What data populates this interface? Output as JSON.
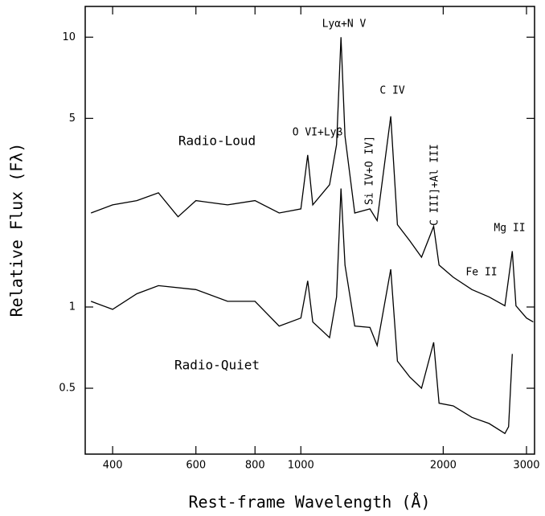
{
  "chart_data": {
    "type": "line",
    "x_label": "Rest-frame Wavelength (Å)",
    "y_label": "Relative Flux (Fλ)",
    "xlog": true,
    "ylog": true,
    "xlim": [
      350,
      3120
    ],
    "ylim": [
      0.285,
      13
    ],
    "xticks": [
      400,
      600,
      800,
      1000,
      2000,
      3000
    ],
    "yticks": [
      0.5,
      1,
      5,
      10
    ],
    "series": [
      {
        "name": "Radio-Loud",
        "color": "#000000",
        "x": [
          360,
          400,
          450,
          500,
          550,
          600,
          700,
          800,
          900,
          1000,
          1034,
          1060,
          1150,
          1190,
          1216,
          1240,
          1300,
          1400,
          1450,
          1549,
          1600,
          1700,
          1800,
          1909,
          1960,
          2100,
          2300,
          2500,
          2700,
          2800,
          2850,
          3000,
          3100
        ],
        "values": [
          2.23,
          2.39,
          2.48,
          2.65,
          2.16,
          2.48,
          2.39,
          2.48,
          2.23,
          2.31,
          3.66,
          2.39,
          2.84,
          4.0,
          10,
          4.29,
          2.23,
          2.31,
          2.09,
          5.09,
          2.02,
          1.76,
          1.53,
          1.99,
          1.43,
          1.29,
          1.16,
          1.09,
          1.01,
          1.61,
          1.01,
          0.91,
          0.88
        ]
      },
      {
        "name": "Radio-Quiet",
        "color": "#000000",
        "x": [
          360,
          400,
          450,
          500,
          600,
          700,
          800,
          900,
          1000,
          1034,
          1060,
          1150,
          1190,
          1216,
          1240,
          1300,
          1400,
          1450,
          1549,
          1600,
          1700,
          1800,
          1909,
          1960,
          2100,
          2300,
          2500,
          2700,
          2750,
          2800
        ],
        "values": [
          1.05,
          0.98,
          1.12,
          1.2,
          1.16,
          1.05,
          1.05,
          0.85,
          0.91,
          1.25,
          0.88,
          0.77,
          1.09,
          2.75,
          1.43,
          0.85,
          0.84,
          0.72,
          1.38,
          0.63,
          0.55,
          0.5,
          0.74,
          0.44,
          0.43,
          0.39,
          0.37,
          0.34,
          0.36,
          0.67
        ]
      }
    ],
    "annotations": [
      "Lyα+N V",
      "O VI+Lyβ",
      "C IV",
      "Si IV+O IV]",
      "C III]+Al III",
      "Mg II",
      "Fe II"
    ]
  }
}
